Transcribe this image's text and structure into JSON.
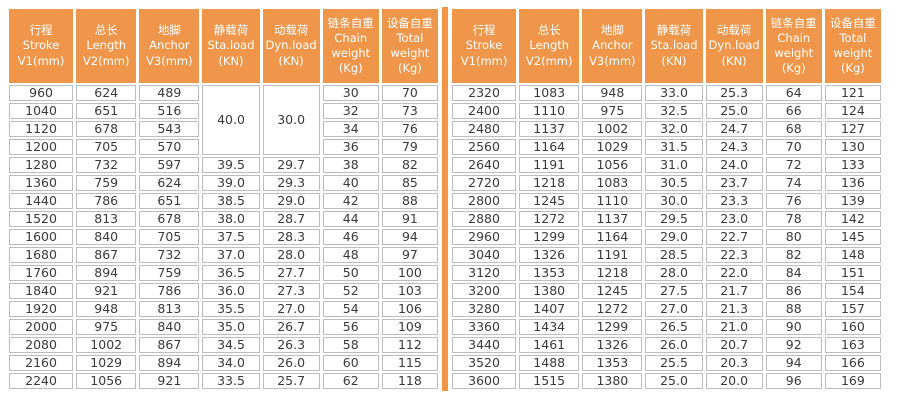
{
  "colors": {
    "header_bg": "#F0964B",
    "header_text": "#FFFFFF",
    "cell_border": "#BDBDBD",
    "body_text": "#3A3A3A",
    "divider": "#F0964B",
    "page_bg": "#FFFFFF"
  },
  "columns": [
    {
      "key": "stroke",
      "cn": "行程",
      "en": "Stroke",
      "unit": "V1(mm)",
      "lines": [
        "行程",
        "Stroke",
        "V1(mm)"
      ]
    },
    {
      "key": "length",
      "cn": "总长",
      "en": "Length",
      "unit": "V2(mm)",
      "lines": [
        "总长",
        "Length",
        "V2(mm)"
      ]
    },
    {
      "key": "anchor",
      "cn": "地脚",
      "en": "Anchor",
      "unit": "V3(mm)",
      "lines": [
        "地脚",
        "Anchor",
        "V3(mm)"
      ]
    },
    {
      "key": "sta-load",
      "cn": "静载荷",
      "en": "Sta.load",
      "unit": "(KN)",
      "lines": [
        "静载荷",
        "Sta.load",
        "(KN)"
      ]
    },
    {
      "key": "dyn-load",
      "cn": "动载荷",
      "en": "Dyn.load",
      "unit": "(KN)",
      "lines": [
        "动载荷",
        "Dyn.load",
        "(KN)"
      ]
    },
    {
      "key": "chain-weight",
      "cn": "链条自重",
      "en": "Chain weight",
      "unit": "(Kg)",
      "lines": [
        "链条自重",
        "Chain",
        "weight",
        "(Kg)"
      ]
    },
    {
      "key": "total-weight",
      "cn": "设备自重",
      "en": "Total weight",
      "unit": "(Kg)",
      "lines": [
        "设备自重",
        "Total",
        "weight",
        "(Kg)"
      ]
    }
  ],
  "tables": [
    {
      "id": "left",
      "rows": [
        [
          "960",
          "624",
          "489",
          {
            "v": "40.0",
            "rowspan": 4
          },
          {
            "v": "30.0",
            "rowspan": 4
          },
          "30",
          "70"
        ],
        [
          "1040",
          "651",
          "516",
          null,
          null,
          "32",
          "73"
        ],
        [
          "1120",
          "678",
          "543",
          null,
          null,
          "34",
          "76"
        ],
        [
          "1200",
          "705",
          "570",
          null,
          null,
          "36",
          "79"
        ],
        [
          "1280",
          "732",
          "597",
          "39.5",
          "29.7",
          "38",
          "82"
        ],
        [
          "1360",
          "759",
          "624",
          "39.0",
          "29.3",
          "40",
          "85"
        ],
        [
          "1440",
          "786",
          "651",
          "38.5",
          "29.0",
          "42",
          "88"
        ],
        [
          "1520",
          "813",
          "678",
          "38.0",
          "28.7",
          "44",
          "91"
        ],
        [
          "1600",
          "840",
          "705",
          "37.5",
          "28.3",
          "46",
          "94"
        ],
        [
          "1680",
          "867",
          "732",
          "37.0",
          "28.0",
          "48",
          "97"
        ],
        [
          "1760",
          "894",
          "759",
          "36.5",
          "27.7",
          "50",
          "100"
        ],
        [
          "1840",
          "921",
          "786",
          "36.0",
          "27.3",
          "52",
          "103"
        ],
        [
          "1920",
          "948",
          "813",
          "35.5",
          "27.0",
          "54",
          "106"
        ],
        [
          "2000",
          "975",
          "840",
          "35.0",
          "26.7",
          "56",
          "109"
        ],
        [
          "2080",
          "1002",
          "867",
          "34.5",
          "26.3",
          "58",
          "112"
        ],
        [
          "2160",
          "1029",
          "894",
          "34.0",
          "26.0",
          "60",
          "115"
        ],
        [
          "2240",
          "1056",
          "921",
          "33.5",
          "25.7",
          "62",
          "118"
        ]
      ]
    },
    {
      "id": "right",
      "rows": [
        [
          "2320",
          "1083",
          "948",
          "33.0",
          "25.3",
          "64",
          "121"
        ],
        [
          "2400",
          "1110",
          "975",
          "32.5",
          "25.0",
          "66",
          "124"
        ],
        [
          "2480",
          "1137",
          "1002",
          "32.0",
          "24.7",
          "68",
          "127"
        ],
        [
          "2560",
          "1164",
          "1029",
          "31.5",
          "24.3",
          "70",
          "130"
        ],
        [
          "2640",
          "1191",
          "1056",
          "31.0",
          "24.0",
          "72",
          "133"
        ],
        [
          "2720",
          "1218",
          "1083",
          "30.5",
          "23.7",
          "74",
          "136"
        ],
        [
          "2800",
          "1245",
          "1110",
          "30.0",
          "23.3",
          "76",
          "139"
        ],
        [
          "2880",
          "1272",
          "1137",
          "29.5",
          "23.0",
          "78",
          "142"
        ],
        [
          "2960",
          "1299",
          "1164",
          "29.0",
          "22.7",
          "80",
          "145"
        ],
        [
          "3040",
          "1326",
          "1191",
          "28.5",
          "22.3",
          "82",
          "148"
        ],
        [
          "3120",
          "1353",
          "1218",
          "28.0",
          "22.0",
          "84",
          "151"
        ],
        [
          "3200",
          "1380",
          "1245",
          "27.5",
          "21.7",
          "86",
          "154"
        ],
        [
          "3280",
          "1407",
          "1272",
          "27.0",
          "21.3",
          "88",
          "157"
        ],
        [
          "3360",
          "1434",
          "1299",
          "26.5",
          "21.0",
          "90",
          "160"
        ],
        [
          "3440",
          "1461",
          "1326",
          "26.0",
          "20.7",
          "92",
          "163"
        ],
        [
          "3520",
          "1488",
          "1353",
          "25.5",
          "20.3",
          "94",
          "166"
        ],
        [
          "3600",
          "1515",
          "1380",
          "25.0",
          "20.0",
          "96",
          "169"
        ]
      ]
    }
  ]
}
